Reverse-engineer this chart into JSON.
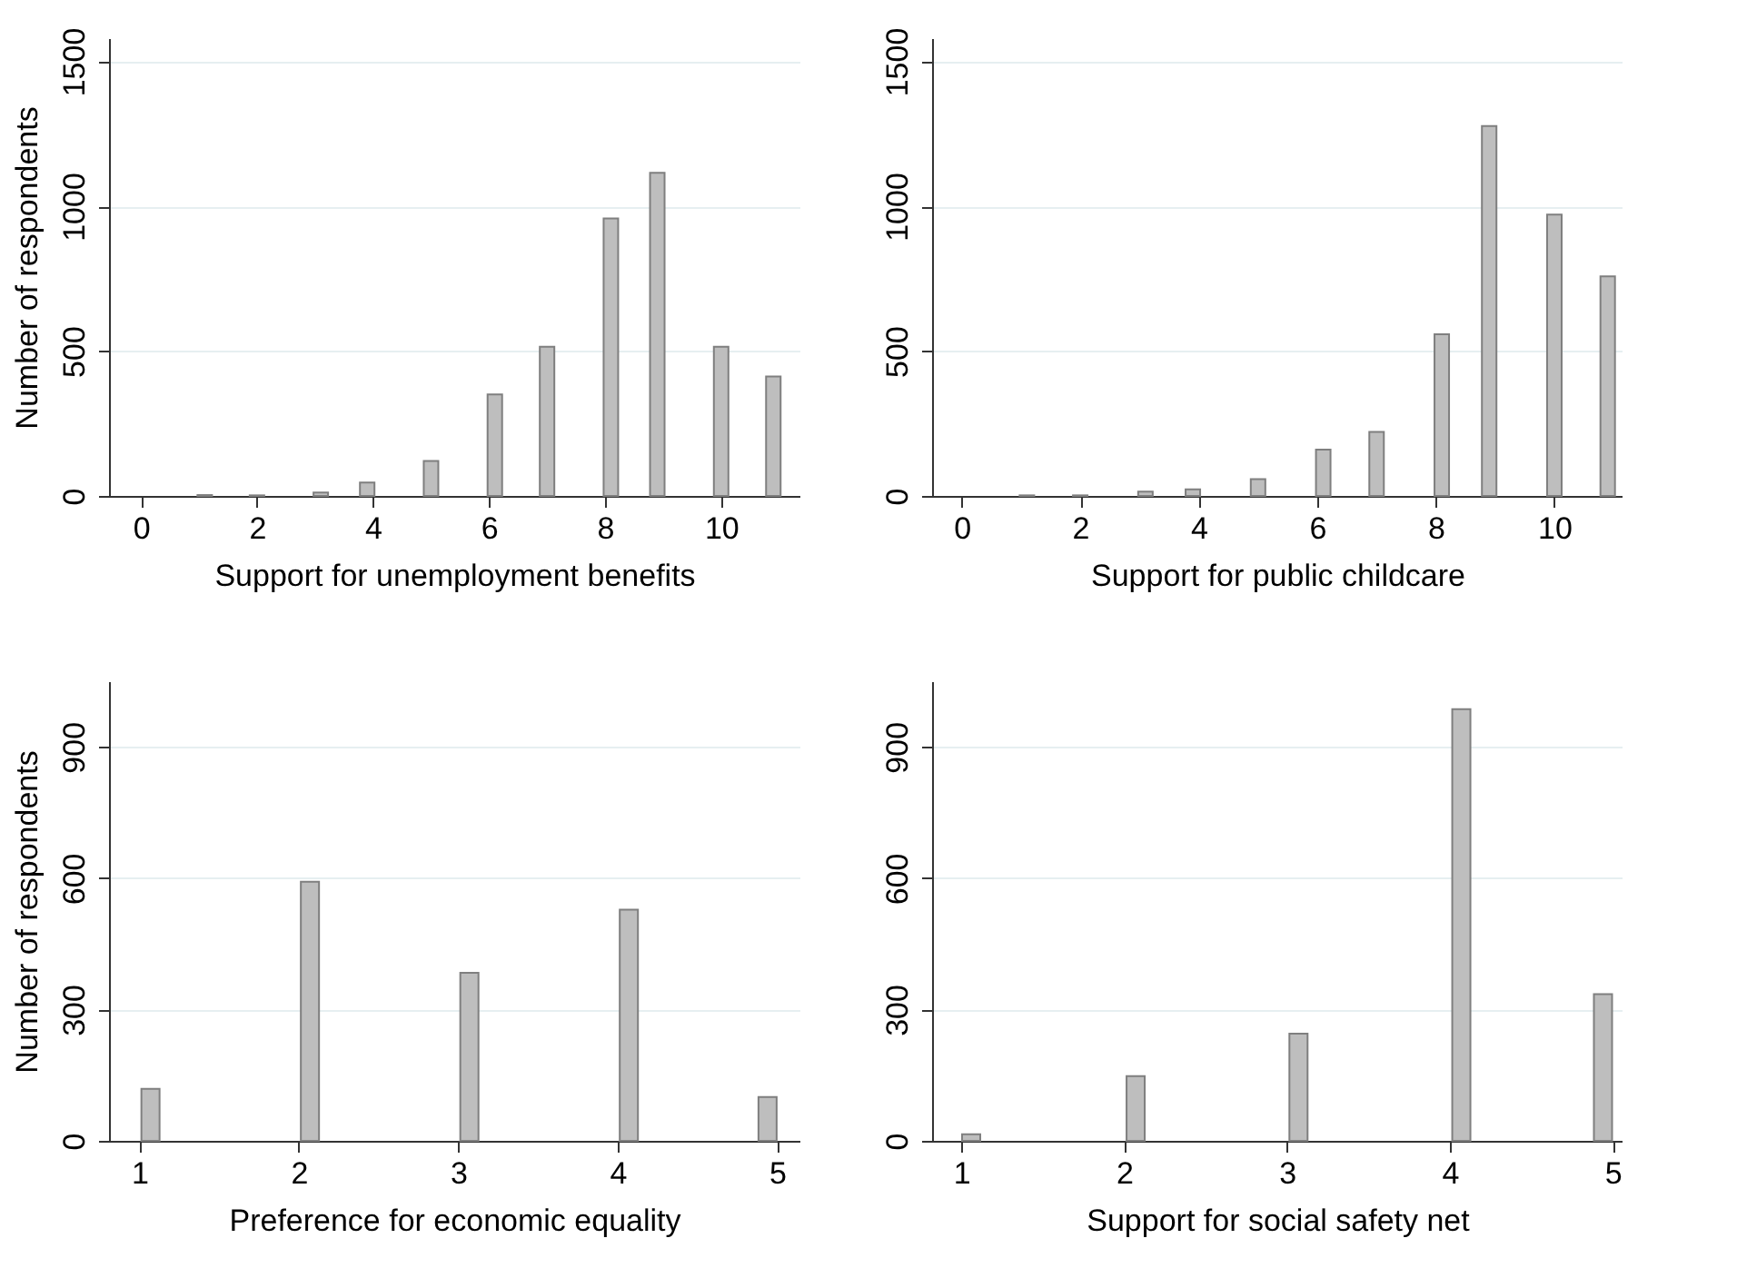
{
  "chart_data": [
    {
      "type": "bar",
      "xlabel": "Support for unemployment benefits",
      "ylabel": "Number of respondents",
      "x": [
        1.1,
        2,
        3.1,
        3.9,
        5,
        6.1,
        7,
        8.1,
        8.9,
        10,
        10.9
      ],
      "values": [
        3,
        2,
        12,
        46,
        121,
        350,
        515,
        958,
        1115,
        515,
        412
      ],
      "color": "#bebebe",
      "xlim": [
        -0.55,
        11.35
      ],
      "xticks": [
        0,
        2,
        4,
        6,
        8,
        10
      ],
      "ylim": [
        0,
        1580
      ],
      "yticks": [
        0,
        500,
        1000,
        1500
      ],
      "grid": "y"
    },
    {
      "type": "bar",
      "xlabel": "Support for public childcare",
      "x": [
        1.1,
        2,
        3.1,
        3.9,
        5,
        6.1,
        7,
        8.1,
        8.9,
        10,
        10.9
      ],
      "values": [
        2,
        2,
        15,
        23,
        58,
        160,
        221,
        558,
        1277,
        971,
        758
      ],
      "color": "#bebebe",
      "xlim": [
        -0.5,
        11.15
      ],
      "xticks": [
        0,
        2,
        4,
        6,
        8,
        10
      ],
      "ylim": [
        0,
        1580
      ],
      "yticks": [
        0,
        500,
        1000,
        1500
      ],
      "grid": "y"
    },
    {
      "type": "bar",
      "xlabel": "Preference for economic equality",
      "ylabel": "Number of respondents",
      "x": [
        1.07,
        2.07,
        3.07,
        4.07,
        4.94
      ],
      "values": [
        119,
        592,
        384,
        528,
        100
      ],
      "color": "#bebebe",
      "xlim": [
        0.81,
        5.14
      ],
      "xticks": [
        1,
        2,
        3,
        4,
        5
      ],
      "ylim": [
        0,
        1050
      ],
      "yticks": [
        0,
        300,
        600,
        900
      ],
      "grid": "y"
    },
    {
      "type": "bar",
      "xlabel": "Support for social safety net",
      "x": [
        1.06,
        2.07,
        3.07,
        4.07,
        4.94
      ],
      "values": [
        15,
        148,
        245,
        986,
        335
      ],
      "color": "#bebebe",
      "xlim": [
        0.82,
        5.06
      ],
      "xticks": [
        1,
        2,
        3,
        4,
        5
      ],
      "ylim": [
        0,
        1050
      ],
      "yticks": [
        0,
        300,
        600,
        900
      ],
      "grid": "y"
    }
  ]
}
